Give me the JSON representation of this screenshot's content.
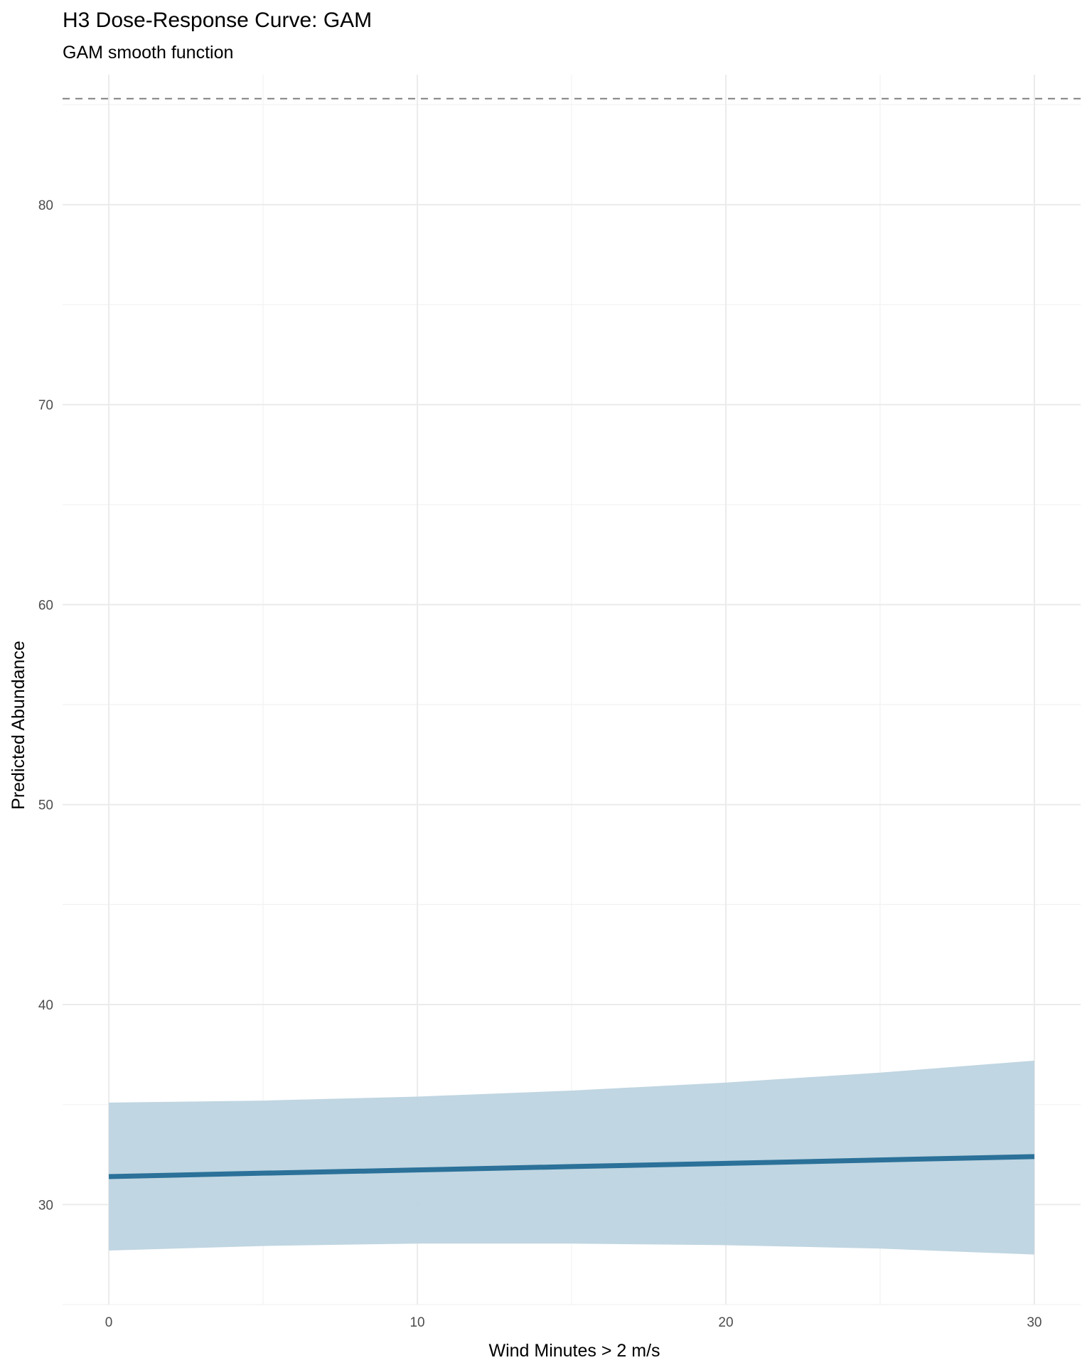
{
  "chart_data": {
    "type": "line",
    "title": "H3 Dose-Response Curve: GAM",
    "subtitle": "GAM smooth function",
    "xlabel": "Wind Minutes > 2 m/s",
    "ylabel": "Predicted Abundance",
    "xlim": [
      -1.5,
      31.5
    ],
    "ylim": [
      25,
      86.5
    ],
    "x_ticks": [
      0,
      10,
      20,
      30
    ],
    "y_ticks": [
      30,
      40,
      50,
      60,
      70,
      80
    ],
    "grid": true,
    "reference_line": {
      "y": 85.3,
      "style": "dashed",
      "color": "#808080"
    },
    "series": [
      {
        "color": "#2b7199",
        "ribbon_color": "#bdd4e0",
        "x": [
          0,
          5,
          10,
          15,
          20,
          25,
          30
        ],
        "y": [
          31.4,
          31.57,
          31.73,
          31.9,
          32.06,
          32.23,
          32.4
        ],
        "lower": [
          27.7,
          27.93,
          28.05,
          28.05,
          27.97,
          27.8,
          27.5
        ],
        "upper": [
          35.1,
          35.2,
          35.4,
          35.7,
          36.1,
          36.6,
          37.2
        ]
      }
    ]
  }
}
